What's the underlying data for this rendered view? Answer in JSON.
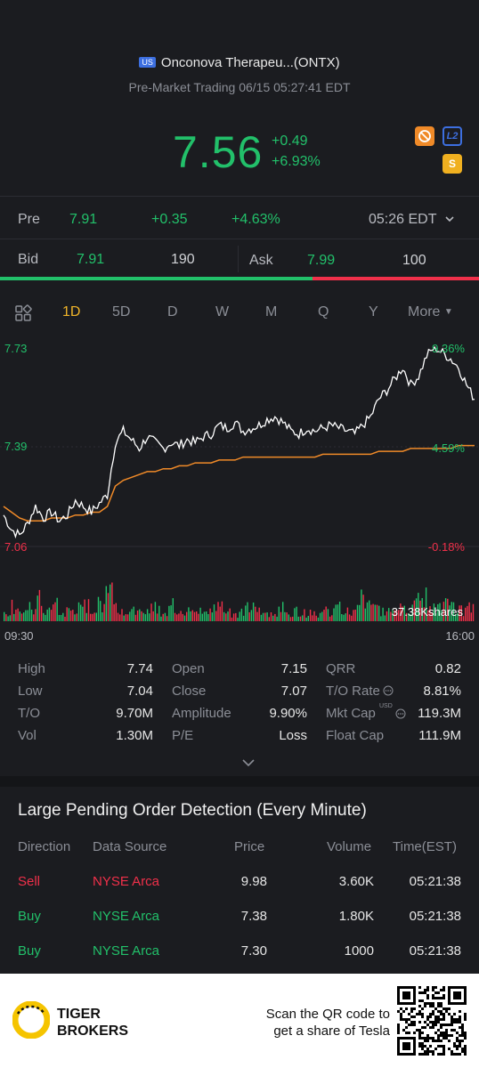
{
  "header": {
    "market_badge": "US",
    "title": "Onconova Therapeu...(ONTX)",
    "session": "Pre-Market Trading 06/15 05:27:41 EDT",
    "price": "7.56",
    "change_abs": "+0.49",
    "change_pct": "+6.93%",
    "icons": [
      "ban-icon",
      "l2-icon",
      "s-icon"
    ],
    "icon_l2_text": "L2",
    "icon_s_text": "S"
  },
  "pre_row": {
    "label": "Pre",
    "price": "7.91",
    "change": "+0.35",
    "change_pct": "+4.63%",
    "time": "05:26 EDT"
  },
  "bid_row": {
    "bid_label": "Bid",
    "bid_price": "7.91",
    "bid_size": "190",
    "ask_label": "Ask",
    "ask_price": "7.99",
    "ask_size": "100",
    "bid_ratio": 0.652
  },
  "tabs": [
    "1D",
    "5D",
    "D",
    "W",
    "M",
    "Q",
    "Y",
    "More"
  ],
  "active_tab": "1D",
  "chart": {
    "y_high": "7.73",
    "y_mid": "7.39",
    "y_low": "7.06",
    "pct_high": "9.36%",
    "pct_mid": "4.59%",
    "pct_low": "-0.18%",
    "volume_label": "37.38Kshares",
    "x_start": "09:30",
    "x_end": "16:00"
  },
  "chart_data": {
    "type": "line",
    "x_range": [
      "09:30",
      "16:00"
    ],
    "ylim": [
      7.06,
      7.73
    ],
    "series": [
      {
        "name": "",
        "role": "price",
        "color": "#ffffff",
        "values": [
          7.15,
          7.1,
          7.08,
          7.12,
          7.18,
          7.14,
          7.16,
          7.13,
          7.15,
          7.2,
          7.18,
          7.16,
          7.19,
          7.22,
          7.4,
          7.44,
          7.41,
          7.38,
          7.42,
          7.4,
          7.38,
          7.4,
          7.39,
          7.41,
          7.4,
          7.42,
          7.43,
          7.46,
          7.45,
          7.47,
          7.44,
          7.45,
          7.46,
          7.48,
          7.49,
          7.47,
          7.44,
          7.43,
          7.45,
          7.44,
          7.45,
          7.46,
          7.45,
          7.44,
          7.43,
          7.46,
          7.49,
          7.55,
          7.58,
          7.62,
          7.66,
          7.6,
          7.63,
          7.7,
          7.73,
          7.71,
          7.69,
          7.66,
          7.6,
          7.55
        ]
      },
      {
        "name": "",
        "role": "average",
        "color": "#f08a28",
        "values": [
          7.18,
          7.16,
          7.14,
          7.13,
          7.13,
          7.13,
          7.14,
          7.14,
          7.14,
          7.15,
          7.15,
          7.16,
          7.16,
          7.18,
          7.25,
          7.27,
          7.28,
          7.29,
          7.3,
          7.3,
          7.31,
          7.31,
          7.32,
          7.32,
          7.33,
          7.33,
          7.33,
          7.34,
          7.34,
          7.34,
          7.35,
          7.35,
          7.35,
          7.35,
          7.35,
          7.35,
          7.35,
          7.35,
          7.35,
          7.35,
          7.36,
          7.36,
          7.36,
          7.36,
          7.36,
          7.36,
          7.36,
          7.37,
          7.37,
          7.37,
          7.37,
          7.38,
          7.38,
          7.38,
          7.38,
          7.38,
          7.38,
          7.39,
          7.39,
          7.39
        ]
      }
    ],
    "volume": {
      "max_label": "37.38Kshares",
      "levels": [
        0.2,
        0.3,
        0.15,
        0.25,
        0.4,
        0.2,
        0.3,
        0.15,
        0.2,
        0.25,
        0.3,
        0.2,
        0.35,
        0.7,
        0.3,
        0.25,
        0.2,
        0.15,
        0.3,
        0.25,
        0.2,
        0.3,
        0.25,
        0.2,
        0.15,
        0.2,
        0.25,
        0.3,
        0.2,
        0.15,
        0.2,
        0.25,
        0.2,
        0.15,
        0.2,
        0.25,
        0.15,
        0.2,
        0.15,
        0.2,
        0.15,
        0.2,
        0.25,
        0.2,
        0.15,
        0.4,
        0.3,
        0.25,
        0.2,
        0.3,
        0.35,
        0.25,
        0.4,
        0.45,
        0.3,
        0.25,
        0.35,
        0.3,
        0.2,
        0.25
      ],
      "colors": [
        "g",
        "r",
        "g",
        "g",
        "r",
        "g",
        "r",
        "g",
        "r",
        "g",
        "g",
        "r",
        "g",
        "g",
        "r",
        "r",
        "g",
        "r",
        "g",
        "r",
        "g",
        "g",
        "r",
        "g",
        "r",
        "g",
        "g",
        "r",
        "g",
        "r",
        "g",
        "g",
        "r",
        "g",
        "r",
        "g",
        "r",
        "g",
        "g",
        "r",
        "g",
        "r",
        "g",
        "g",
        "r",
        "g",
        "g",
        "r",
        "g",
        "g",
        "r",
        "g",
        "g",
        "r",
        "r",
        "g",
        "r",
        "g",
        "r",
        "r"
      ]
    }
  },
  "stats": [
    {
      "label": "High",
      "value": "7.74"
    },
    {
      "label": "Low",
      "value": "7.04"
    },
    {
      "label": "T/O",
      "value": "9.70M"
    },
    {
      "label": "Vol",
      "value": "1.30M"
    },
    {
      "label": "Open",
      "value": "7.15"
    },
    {
      "label": "Close",
      "value": "7.07"
    },
    {
      "label": "Amplitude",
      "value": "9.90%"
    },
    {
      "label": "P/E",
      "value": "Loss"
    },
    {
      "label": "QRR",
      "value": "0.82"
    },
    {
      "label": "T/O Rate",
      "value": "8.81%"
    },
    {
      "label": "Mkt Cap",
      "value": "119.3M"
    },
    {
      "label": "Float Cap",
      "value": "111.9M"
    }
  ],
  "mktcap_unit": "USD",
  "orders": {
    "title": "Large Pending Order Detection (Every Minute)",
    "headers": [
      "Direction",
      "Data Source",
      "Price",
      "Volume",
      "Time(EST)"
    ],
    "rows": [
      {
        "direction": "Sell",
        "source": "NYSE Arca",
        "price": "9.98",
        "volume": "3.60K",
        "time": "05:21:38"
      },
      {
        "direction": "Buy",
        "source": "NYSE Arca",
        "price": "7.38",
        "volume": "1.80K",
        "time": "05:21:38"
      },
      {
        "direction": "Buy",
        "source": "NYSE Arca",
        "price": "7.30",
        "volume": "1000",
        "time": "05:21:38"
      }
    ]
  },
  "footer": {
    "brand_line1": "TIGER",
    "brand_line2": "BROKERS",
    "scan_line1": "Scan the QR code to",
    "scan_line2": "get a share of Tesla"
  },
  "colors": {
    "up": "#22c06a",
    "down": "#f0304a",
    "accent": "#f0b429",
    "background": "#1b1c20"
  }
}
